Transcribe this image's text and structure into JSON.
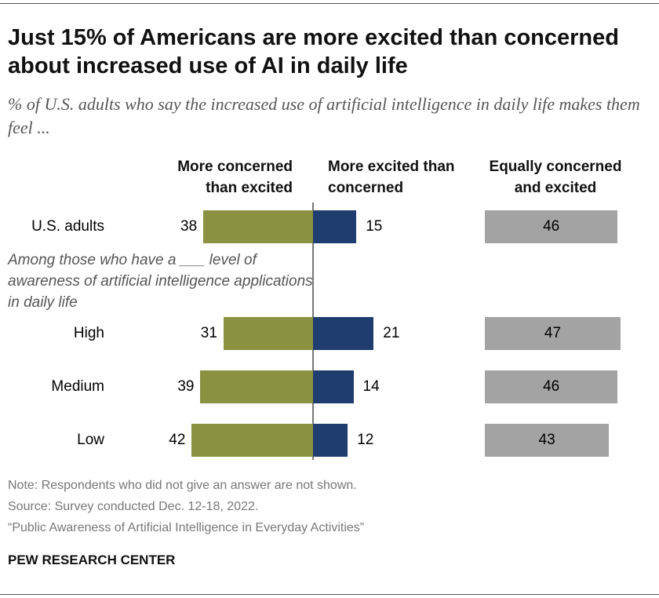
{
  "title": "Just 15% of Americans are more excited than concerned about increased use of AI in daily life",
  "subtitle": "% of U.S. adults who say the increased use of artificial intelligence in daily life makes them feel ...",
  "group_note": "Among those who have a ___ level of awareness of artificial intelligence applications in daily life",
  "footer": {
    "note": "Note: Respondents who did not give an answer are not shown.",
    "source": "Source: Survey conducted Dec. 12-18, 2022.",
    "report": "“Public Awareness of Artificial Intelligence in Everyday Activities”",
    "org": "PEW RESEARCH CENTER"
  },
  "chart_data": {
    "type": "bar",
    "orientation": "horizontal",
    "layout": "diverging plus separate column",
    "categories": [
      "U.S. adults",
      "High",
      "Medium",
      "Low"
    ],
    "series": [
      {
        "name": "More concerned than excited",
        "color": "#8a9140",
        "values": [
          38,
          31,
          39,
          42
        ]
      },
      {
        "name": "More excited than concerned",
        "color": "#1f3d6e",
        "values": [
          15,
          21,
          14,
          12
        ]
      },
      {
        "name": "Equally concerned and excited",
        "color": "#a3a3a3",
        "values": [
          46,
          47,
          46,
          43
        ]
      }
    ],
    "data_labels": true
  }
}
